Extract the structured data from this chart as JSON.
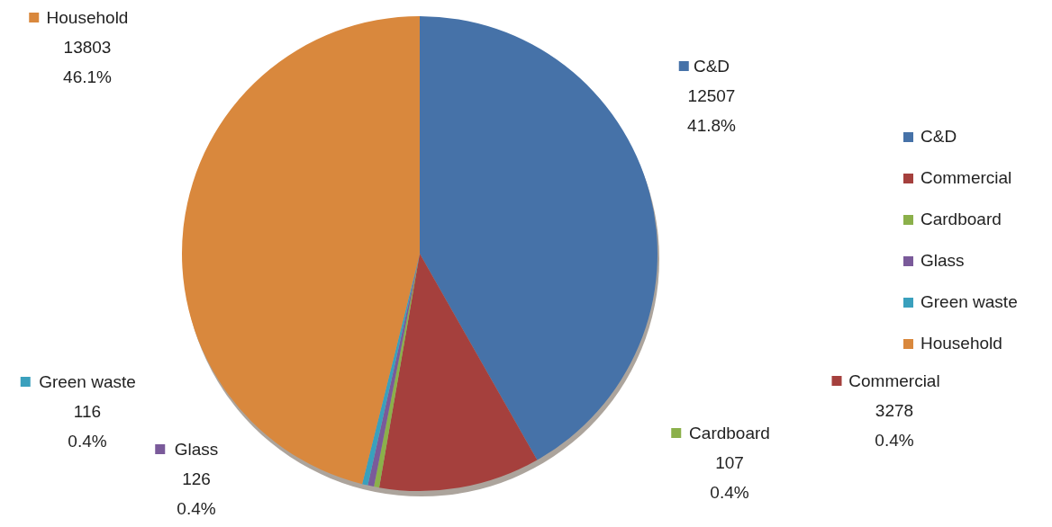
{
  "chart_data": {
    "type": "pie",
    "categories": [
      "C&D",
      "Commercial",
      "Cardboard",
      "Glass",
      "Green waste",
      "Household"
    ],
    "values": [
      12507,
      3278,
      107,
      126,
      116,
      13803
    ],
    "colors": [
      "#4672a8",
      "#a5403d",
      "#8bb04a",
      "#7a5a9a",
      "#3aa0bd",
      "#d9883d"
    ],
    "value_labels": [
      "12507\n41.8%",
      "3278\n0.4%",
      "107\n0.4%",
      "126\n0.4%",
      "116\n0.4%",
      "13803\n46.1%"
    ],
    "legend": "right"
  }
}
